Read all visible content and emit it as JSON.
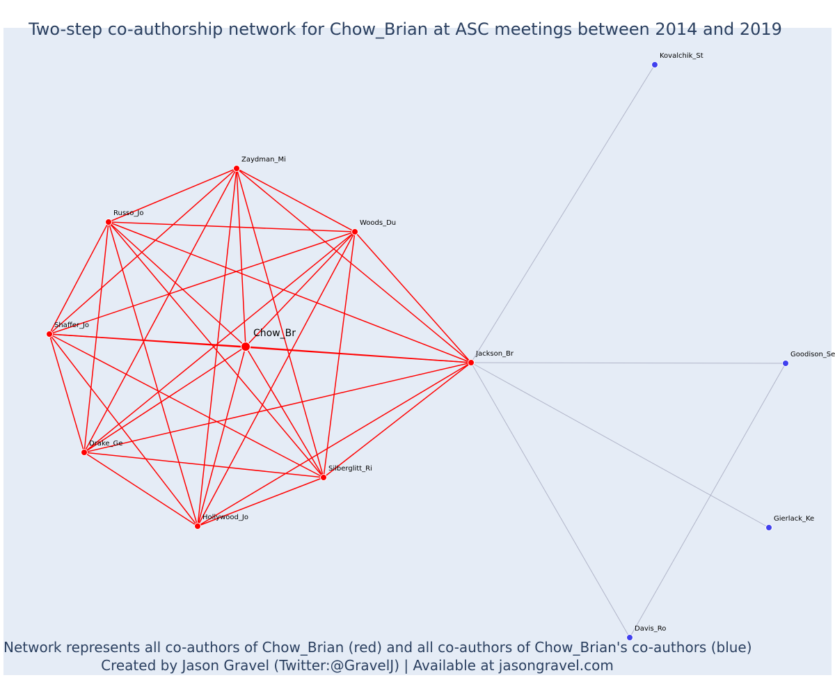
{
  "title": "Two-step co-authorship network for Chow_Brian at ASC meetings between 2014 and 2019",
  "footer_line_1": "Network represents all co-authors of Chow_Brian (red) and all co-authors of Chow_Brian's co-authors (blue)",
  "footer_line_2": "Created by Jason Gravel (Twitter:@GravelJ) | Available at jasongravel.com",
  "colors": {
    "first_degree": "#ff0000",
    "second_degree": "#4040ee",
    "second_degree_edge": "#b0b4c8",
    "plot_background": "#e5ecf6",
    "text": "#2a3f5f"
  },
  "nodes": [
    {
      "id": "Chow_Br",
      "label": "Chow_Br",
      "group": "center"
    },
    {
      "id": "Zaydman_Mi",
      "label": "Zaydman_Mi",
      "group": "first"
    },
    {
      "id": "Russo_Jo",
      "label": "Russo_Jo",
      "group": "first"
    },
    {
      "id": "Woods_Du",
      "label": "Woods_Du",
      "group": "first"
    },
    {
      "id": "Shaffer_Jo",
      "label": "Shaffer_Jo",
      "group": "first"
    },
    {
      "id": "Jackson_Br",
      "label": "Jackson_Br",
      "group": "first"
    },
    {
      "id": "Drake_Ge",
      "label": "Drake_Ge",
      "group": "first"
    },
    {
      "id": "Silberglitt_Ri",
      "label": "Silberglitt_Ri",
      "group": "first"
    },
    {
      "id": "Hollywood_Jo",
      "label": "Hollywood_Jo",
      "group": "first"
    },
    {
      "id": "Kovalchik_St",
      "label": "Kovalchik_St",
      "group": "second"
    },
    {
      "id": "Goodison_Se",
      "label": "Goodison_Se",
      "group": "second"
    },
    {
      "id": "Gierlack_Ke",
      "label": "Gierlack_Ke",
      "group": "second"
    },
    {
      "id": "Davis_Ro",
      "label": "Davis_Ro",
      "group": "second"
    }
  ],
  "edges": [
    [
      "Chow_Br",
      "Zaydman_Mi"
    ],
    [
      "Chow_Br",
      "Russo_Jo"
    ],
    [
      "Chow_Br",
      "Woods_Du"
    ],
    [
      "Chow_Br",
      "Shaffer_Jo"
    ],
    [
      "Chow_Br",
      "Jackson_Br"
    ],
    [
      "Chow_Br",
      "Drake_Ge"
    ],
    [
      "Chow_Br",
      "Silberglitt_Ri"
    ],
    [
      "Chow_Br",
      "Hollywood_Jo"
    ],
    [
      "Zaydman_Mi",
      "Russo_Jo"
    ],
    [
      "Zaydman_Mi",
      "Woods_Du"
    ],
    [
      "Zaydman_Mi",
      "Shaffer_Jo"
    ],
    [
      "Zaydman_Mi",
      "Jackson_Br"
    ],
    [
      "Zaydman_Mi",
      "Drake_Ge"
    ],
    [
      "Zaydman_Mi",
      "Silberglitt_Ri"
    ],
    [
      "Zaydman_Mi",
      "Hollywood_Jo"
    ],
    [
      "Russo_Jo",
      "Woods_Du"
    ],
    [
      "Russo_Jo",
      "Shaffer_Jo"
    ],
    [
      "Russo_Jo",
      "Jackson_Br"
    ],
    [
      "Russo_Jo",
      "Drake_Ge"
    ],
    [
      "Russo_Jo",
      "Silberglitt_Ri"
    ],
    [
      "Russo_Jo",
      "Hollywood_Jo"
    ],
    [
      "Woods_Du",
      "Shaffer_Jo"
    ],
    [
      "Woods_Du",
      "Jackson_Br"
    ],
    [
      "Woods_Du",
      "Drake_Ge"
    ],
    [
      "Woods_Du",
      "Silberglitt_Ri"
    ],
    [
      "Woods_Du",
      "Hollywood_Jo"
    ],
    [
      "Shaffer_Jo",
      "Jackson_Br"
    ],
    [
      "Shaffer_Jo",
      "Drake_Ge"
    ],
    [
      "Shaffer_Jo",
      "Silberglitt_Ri"
    ],
    [
      "Shaffer_Jo",
      "Hollywood_Jo"
    ],
    [
      "Jackson_Br",
      "Drake_Ge"
    ],
    [
      "Jackson_Br",
      "Silberglitt_Ri"
    ],
    [
      "Jackson_Br",
      "Hollywood_Jo"
    ],
    [
      "Drake_Ge",
      "Silberglitt_Ri"
    ],
    [
      "Drake_Ge",
      "Hollywood_Jo"
    ],
    [
      "Silberglitt_Ri",
      "Hollywood_Jo"
    ],
    [
      "Jackson_Br",
      "Kovalchik_St"
    ],
    [
      "Jackson_Br",
      "Goodison_Se"
    ],
    [
      "Jackson_Br",
      "Gierlack_Ke"
    ],
    [
      "Jackson_Br",
      "Davis_Ro"
    ],
    [
      "Goodison_Se",
      "Davis_Ro"
    ]
  ]
}
